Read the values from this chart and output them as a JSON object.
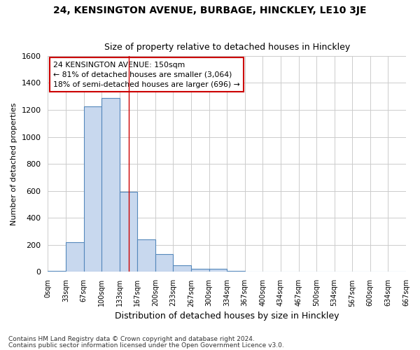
{
  "title1": "24, KENSINGTON AVENUE, BURBAGE, HINCKLEY, LE10 3JE",
  "title2": "Size of property relative to detached houses in Hinckley",
  "xlabel": "Distribution of detached houses by size in Hinckley",
  "ylabel": "Number of detached properties",
  "footer1": "Contains HM Land Registry data © Crown copyright and database right 2024.",
  "footer2": "Contains public sector information licensed under the Open Government Licence v3.0.",
  "annotation_line1": "24 KENSINGTON AVENUE: 150sqm",
  "annotation_line2": "← 81% of detached houses are smaller (3,064)",
  "annotation_line3": "18% of semi-detached houses are larger (696) →",
  "property_size": 150,
  "bin_edges": [
    0,
    33.33,
    66.67,
    100,
    133.33,
    166.67,
    200,
    233.33,
    266.67,
    300,
    333.33,
    366.67,
    400,
    433.33,
    466.67,
    500,
    533.33,
    566.67,
    600,
    633.33,
    666.67
  ],
  "bin_heights": [
    10,
    218,
    1224,
    1290,
    595,
    240,
    130,
    50,
    25,
    25,
    10,
    0,
    0,
    0,
    0,
    0,
    0,
    0,
    0,
    0
  ],
  "tick_labels": [
    "0sqm",
    "33sqm",
    "67sqm",
    "100sqm",
    "133sqm",
    "167sqm",
    "200sqm",
    "233sqm",
    "267sqm",
    "300sqm",
    "334sqm",
    "367sqm",
    "400sqm",
    "434sqm",
    "467sqm",
    "500sqm",
    "534sqm",
    "567sqm",
    "600sqm",
    "634sqm",
    "667sqm"
  ],
  "bar_color": "#c8d8ee",
  "bar_edge_color": "#5588bb",
  "vline_color": "#cc0000",
  "ylim": [
    0,
    1600
  ],
  "yticks": [
    0,
    200,
    400,
    600,
    800,
    1000,
    1200,
    1400,
    1600
  ],
  "grid_color": "#cccccc",
  "annotation_box_color": "#cc0000",
  "bg_color": "#ffffff"
}
